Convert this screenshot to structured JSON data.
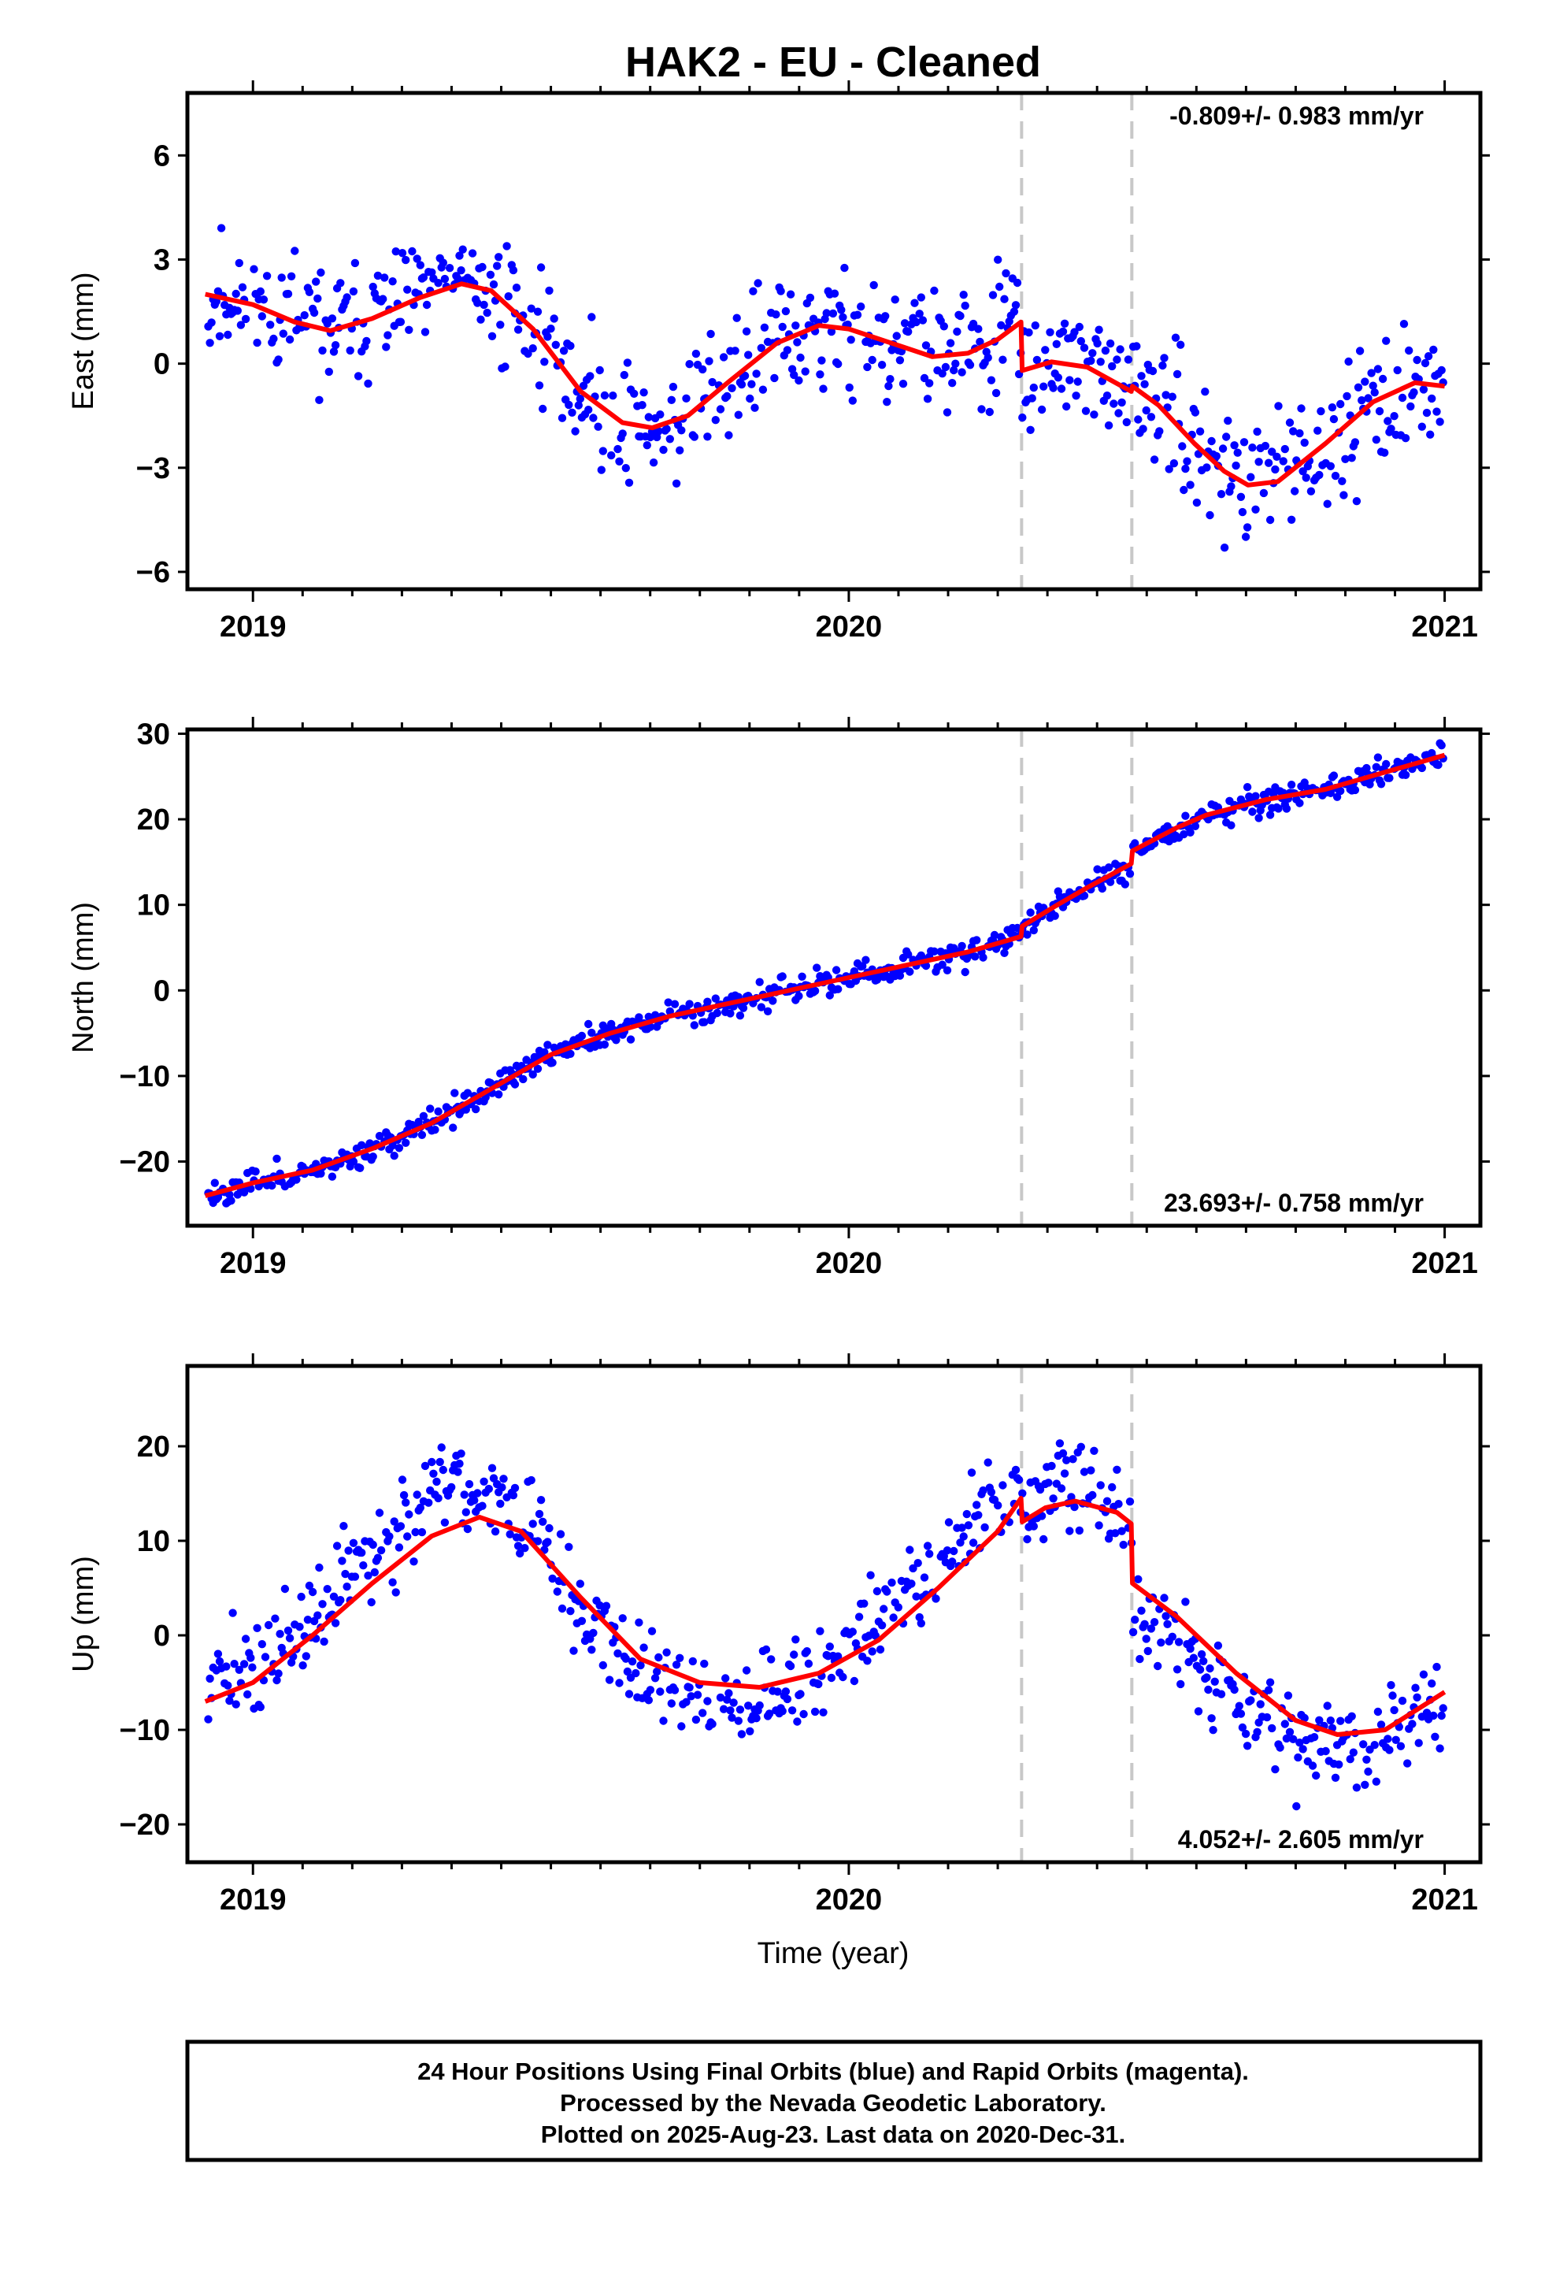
{
  "title": "HAK2  - EU - Cleaned",
  "xlabel": "Time (year)",
  "footer": [
    "24 Hour Positions Using Final Orbits (blue) and Rapid Orbits (magenta).",
    "Processed by the Nevada Geodetic Laboratory.",
    "Plotted on 2025-Aug-23. Last data on 2020-Dec-31."
  ],
  "colors": {
    "points": "#0000ff",
    "model": "#ff0000",
    "breaks": "#c8c8c8"
  },
  "chart_data": [
    {
      "type": "scatter",
      "ylabel": "East (mm)",
      "rate": "-0.809+/- 0.983 mm/yr",
      "xlim": [
        2018.89,
        2021.06
      ],
      "ylim": [
        -6.5,
        7.8
      ],
      "xticks": [
        2019,
        2020,
        2021
      ],
      "yticks": [
        -6,
        -3,
        0,
        3,
        6
      ],
      "ytick_labels": [
        "−6",
        "−3",
        "0",
        "3",
        "6"
      ],
      "breaks": [
        2020.29,
        2020.475
      ],
      "model": {
        "x": [
          2018.92,
          2019.0,
          2019.07,
          2019.13,
          2019.2,
          2019.28,
          2019.35,
          2019.4,
          2019.47,
          2019.55,
          2019.62,
          2019.67,
          2019.73,
          2019.8,
          2019.88,
          2019.95,
          2020.0,
          2020.07,
          2020.14,
          2020.2,
          2020.25,
          2020.289,
          2020.291,
          2020.34,
          2020.4,
          2020.474,
          2020.476,
          2020.52,
          2020.58,
          2020.63,
          2020.67,
          2020.72,
          2020.8,
          2020.88,
          2020.95,
          2021.0
        ],
        "y": [
          2.0,
          1.7,
          1.2,
          0.95,
          1.3,
          1.9,
          2.3,
          2.1,
          1.0,
          -0.8,
          -1.7,
          -1.85,
          -1.5,
          -0.5,
          0.6,
          1.1,
          1.0,
          0.6,
          0.2,
          0.3,
          0.7,
          1.2,
          -0.2,
          0.05,
          -0.1,
          -0.8,
          -0.65,
          -1.2,
          -2.3,
          -3.1,
          -3.5,
          -3.4,
          -2.3,
          -1.1,
          -0.55,
          -0.65
        ]
      },
      "scatter_curve": {
        "x": [
          2018.92,
          2019.0,
          2019.07,
          2019.13,
          2019.2,
          2019.28,
          2019.35,
          2019.4,
          2019.47,
          2019.55,
          2019.62,
          2019.67,
          2019.73,
          2019.8,
          2019.88,
          2019.95,
          2020.0,
          2020.07,
          2020.14,
          2020.2,
          2020.25,
          2020.289,
          2020.291,
          2020.34,
          2020.4,
          2020.474,
          2020.476,
          2020.52,
          2020.58,
          2020.63,
          2020.67,
          2020.72,
          2020.8,
          2020.88,
          2020.95,
          2021.0
        ],
        "y": [
          2.0,
          1.7,
          1.2,
          0.95,
          1.3,
          1.9,
          2.3,
          2.1,
          1.0,
          -0.8,
          -1.7,
          -1.85,
          -1.5,
          -0.5,
          0.6,
          1.1,
          1.0,
          0.6,
          0.2,
          0.3,
          0.7,
          1.2,
          -0.2,
          0.05,
          -0.1,
          -0.8,
          -0.65,
          -1.2,
          -2.3,
          -3.1,
          -3.5,
          -3.4,
          -2.3,
          -1.1,
          -0.55,
          -0.65
        ]
      },
      "noise_sd": 1.3,
      "seed": 11
    },
    {
      "type": "scatter",
      "ylabel": "North (mm)",
      "rate": "23.693+/- 0.758 mm/yr",
      "xlim": [
        2018.89,
        2021.06
      ],
      "ylim": [
        -27.5,
        30.5
      ],
      "xticks": [
        2019,
        2020,
        2021
      ],
      "yticks": [
        -20,
        -10,
        0,
        10,
        20,
        30
      ],
      "ytick_labels": [
        "−20",
        "−10",
        "0",
        "10",
        "20",
        "30"
      ],
      "breaks": [
        2020.29,
        2020.475
      ],
      "model": {
        "x": [
          2018.92,
          2019.0,
          2019.1,
          2019.2,
          2019.3,
          2019.4,
          2019.5,
          2019.6,
          2019.7,
          2019.8,
          2019.9,
          2020.0,
          2020.1,
          2020.2,
          2020.289,
          2020.291,
          2020.35,
          2020.4,
          2020.474,
          2020.476,
          2020.55,
          2020.6,
          2020.7,
          2020.8,
          2020.9,
          2021.0
        ],
        "y": [
          -24.0,
          -22.5,
          -21.0,
          -18.5,
          -15.5,
          -11.5,
          -7.5,
          -5.0,
          -3.0,
          -1.5,
          0.0,
          1.5,
          3.0,
          4.5,
          6.3,
          7.5,
          10.0,
          12.0,
          14.8,
          16.3,
          19.0,
          20.5,
          22.3,
          23.5,
          25.5,
          27.5
        ]
      },
      "scatter_curve": {
        "x": [
          2018.92,
          2019.0,
          2019.1,
          2019.2,
          2019.3,
          2019.4,
          2019.5,
          2019.6,
          2019.7,
          2019.8,
          2019.9,
          2020.0,
          2020.1,
          2020.2,
          2020.289,
          2020.291,
          2020.35,
          2020.4,
          2020.474,
          2020.476,
          2020.55,
          2020.6,
          2020.7,
          2020.8,
          2020.9,
          2021.0
        ],
        "y": [
          -24.0,
          -22.5,
          -21.0,
          -18.5,
          -15.5,
          -11.5,
          -7.5,
          -5.0,
          -3.0,
          -1.5,
          0.0,
          1.5,
          3.0,
          4.5,
          6.3,
          7.5,
          10.0,
          12.0,
          14.8,
          16.3,
          19.0,
          20.5,
          22.3,
          23.5,
          25.5,
          27.5
        ]
      },
      "noise_sd": 1.1,
      "seed": 23
    },
    {
      "type": "scatter",
      "ylabel": "Up (mm)",
      "rate": "4.052+/- 2.605 mm/yr",
      "xlim": [
        2018.89,
        2021.06
      ],
      "ylim": [
        -24.0,
        28.5
      ],
      "xticks": [
        2019,
        2020,
        2021
      ],
      "yticks": [
        -20,
        -10,
        0,
        10,
        20
      ],
      "ytick_labels": [
        "−20",
        "−10",
        "0",
        "10",
        "20"
      ],
      "breaks": [
        2020.29,
        2020.475
      ],
      "model": {
        "x": [
          2018.92,
          2019.0,
          2019.1,
          2019.2,
          2019.3,
          2019.38,
          2019.45,
          2019.55,
          2019.65,
          2019.75,
          2019.85,
          2019.95,
          2020.05,
          2020.15,
          2020.25,
          2020.289,
          2020.291,
          2020.33,
          2020.38,
          2020.45,
          2020.474,
          2020.476,
          2020.55,
          2020.65,
          2020.75,
          2020.82,
          2020.9,
          2021.0
        ],
        "y": [
          -7.0,
          -5.0,
          0.0,
          5.5,
          10.5,
          12.5,
          11.0,
          4.0,
          -2.5,
          -5.0,
          -5.5,
          -4.0,
          -0.5,
          5.0,
          11.0,
          14.5,
          12.0,
          13.5,
          14.2,
          13.0,
          11.8,
          5.5,
          2.0,
          -4.0,
          -9.0,
          -10.5,
          -10.0,
          -6.0
        ]
      },
      "scatter_curve": {
        "x": [
          2018.92,
          2019.0,
          2019.1,
          2019.2,
          2019.3,
          2019.38,
          2019.45,
          2019.55,
          2019.65,
          2019.75,
          2019.85,
          2019.95,
          2020.05,
          2020.15,
          2020.25,
          2020.289,
          2020.291,
          2020.33,
          2020.38,
          2020.45,
          2020.474,
          2020.476,
          2020.55,
          2020.65,
          2020.75,
          2020.82,
          2020.9,
          2021.0
        ],
        "y": [
          -4.0,
          -4.0,
          1.0,
          9.0,
          15.0,
          15.5,
          12.5,
          3.0,
          -3.5,
          -6.5,
          -7.0,
          -4.5,
          1.5,
          8.0,
          14.5,
          16.0,
          13.5,
          16.0,
          16.5,
          13.0,
          11.8,
          2.0,
          -1.0,
          -6.0,
          -10.5,
          -12.5,
          -11.0,
          -6.0
        ]
      },
      "noise_sd": 3.6,
      "seed": 37
    }
  ]
}
